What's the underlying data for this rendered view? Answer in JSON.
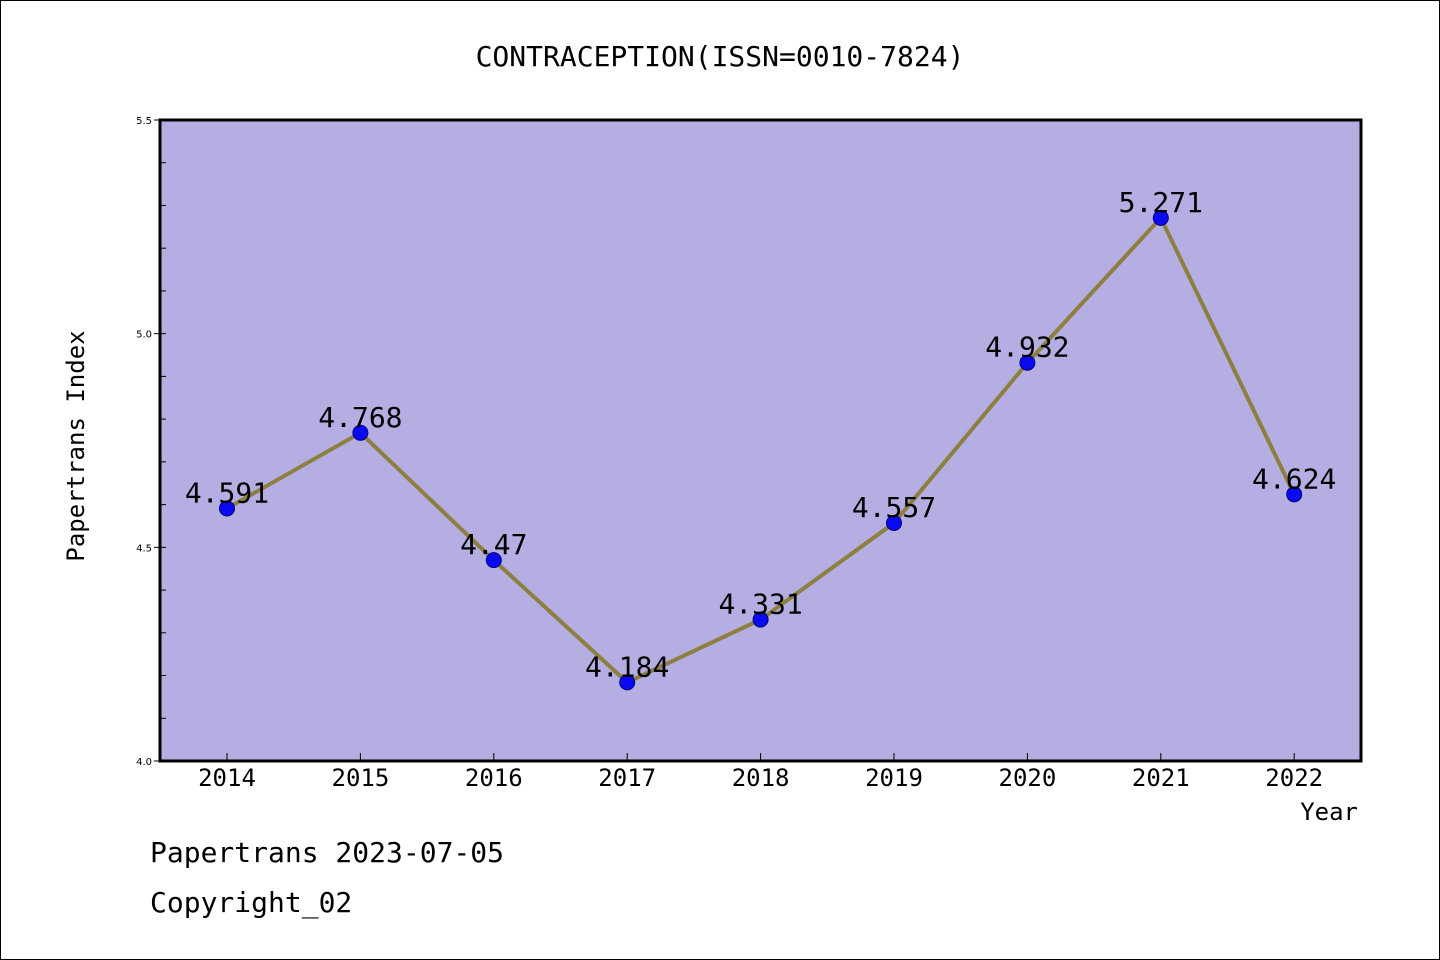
{
  "colors": {
    "plot_background": "#b5aee2",
    "line": "#8c7f3f",
    "marker_fill": "#0a0af0",
    "marker_stroke": "#000080",
    "axis": "#000000"
  },
  "footer": {
    "line1": "Papertrans 2023-07-05",
    "line2": "Copyright_02"
  },
  "chart_data": {
    "type": "line",
    "title": "CONTRACEPTION(ISSN=0010-7824)",
    "xlabel": "Year",
    "ylabel": "Papertrans Index",
    "categories": [
      "2014",
      "2015",
      "2016",
      "2017",
      "2018",
      "2019",
      "2020",
      "2021",
      "2022"
    ],
    "series": [
      {
        "values": [
          4.591,
          4.768,
          4.47,
          4.184,
          4.331,
          4.557,
          4.932,
          5.271,
          4.624
        ],
        "labels": [
          "4.591",
          "4.768",
          "4.47",
          "4.184",
          "4.331",
          "4.557",
          "4.932",
          "5.271",
          "4.624"
        ]
      }
    ],
    "ylim": [
      4.0,
      5.5
    ],
    "yticks": [
      "4.0",
      "4.5",
      "5.0",
      "5.5"
    ],
    "y_minor_step": 0.1,
    "grid": false,
    "legend": "none"
  }
}
